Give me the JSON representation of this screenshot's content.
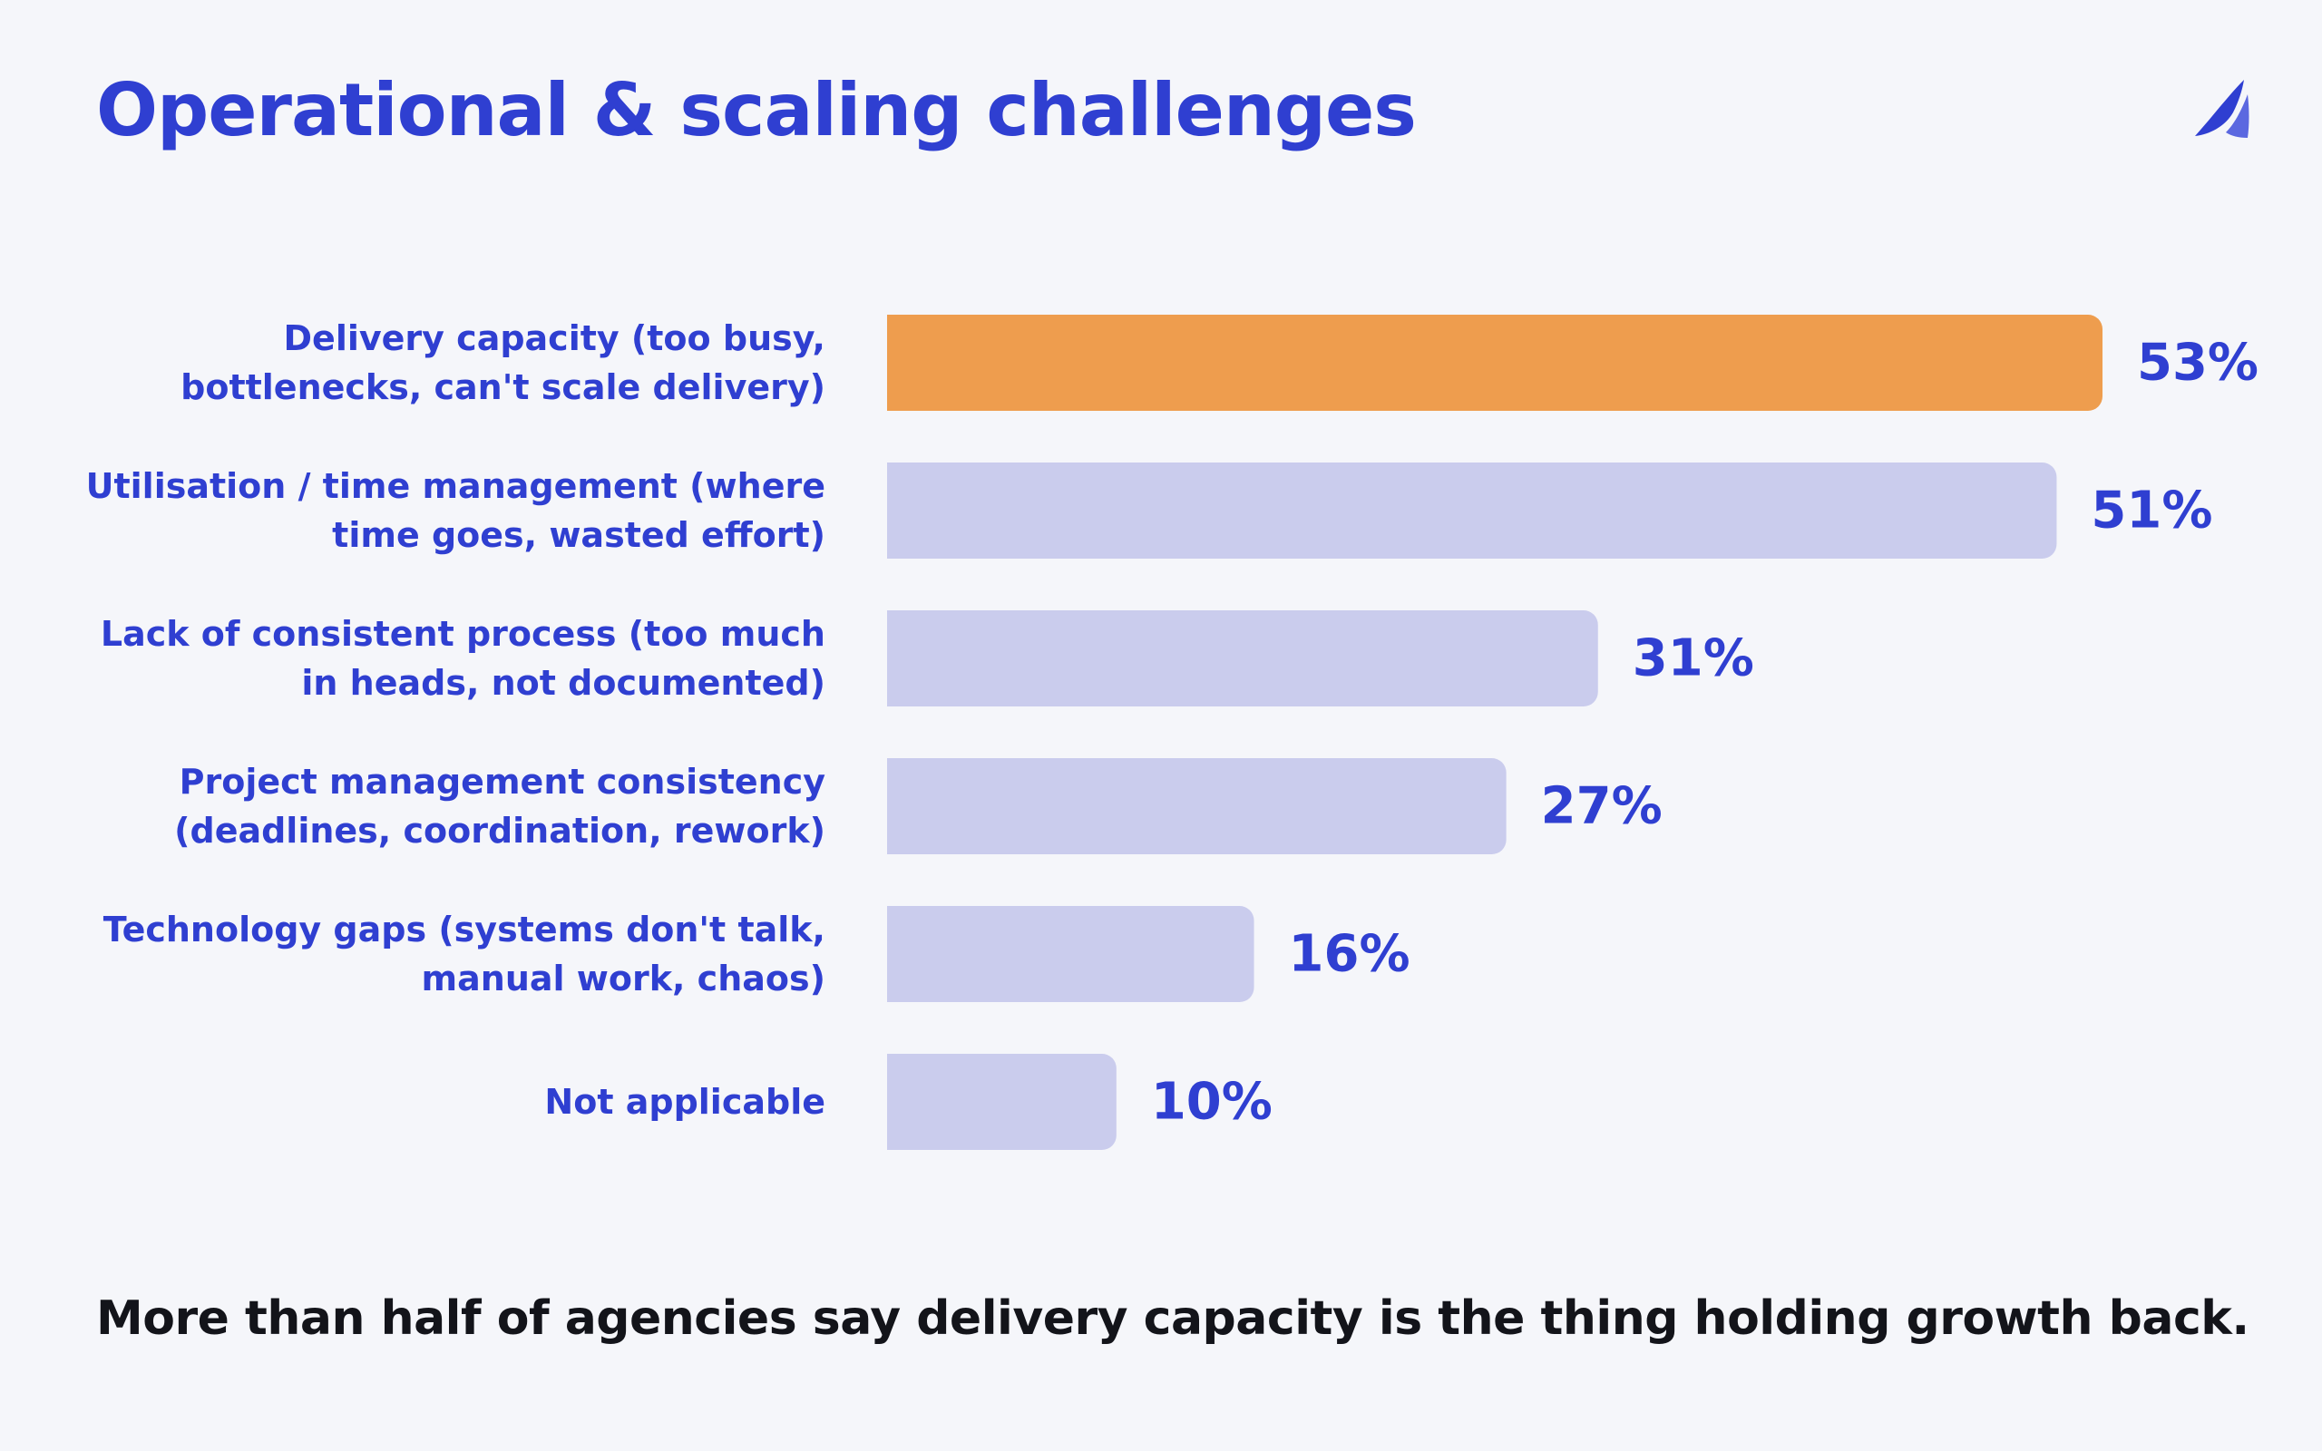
{
  "title": "Operational & scaling challenges",
  "caption": "More than half of agencies say delivery capacity is the thing holding growth back.",
  "logo_icon": "sail-logo-icon",
  "colors": {
    "accent": "#2f3fd1",
    "highlight_bar": "#ee9d4e",
    "default_bar": "#cacced",
    "background": "#f5f6fa",
    "caption_text": "#13141a"
  },
  "chart_data": {
    "type": "bar",
    "orientation": "horizontal",
    "title": "Operational & scaling challenges",
    "xlabel": "",
    "ylabel": "",
    "unit": "%",
    "xlim": [
      0,
      53
    ],
    "grid": false,
    "legend": "none",
    "categories": [
      [
        "Delivery capacity (too busy,",
        "bottlenecks, can't scale delivery)"
      ],
      [
        "Utilisation / time management (where",
        "time goes, wasted effort)"
      ],
      [
        "Lack of consistent process (too much",
        "in heads, not documented)"
      ],
      [
        "Project management consistency",
        "(deadlines, coordination, rework)"
      ],
      [
        "Technology gaps (systems don't talk,",
        "manual work, chaos)"
      ],
      [
        "Not applicable"
      ]
    ],
    "values": [
      53,
      51,
      31,
      27,
      16,
      10
    ],
    "value_labels": [
      "53%",
      "51%",
      "31%",
      "27%",
      "16%",
      "10%"
    ],
    "highlighted_index": 0
  }
}
